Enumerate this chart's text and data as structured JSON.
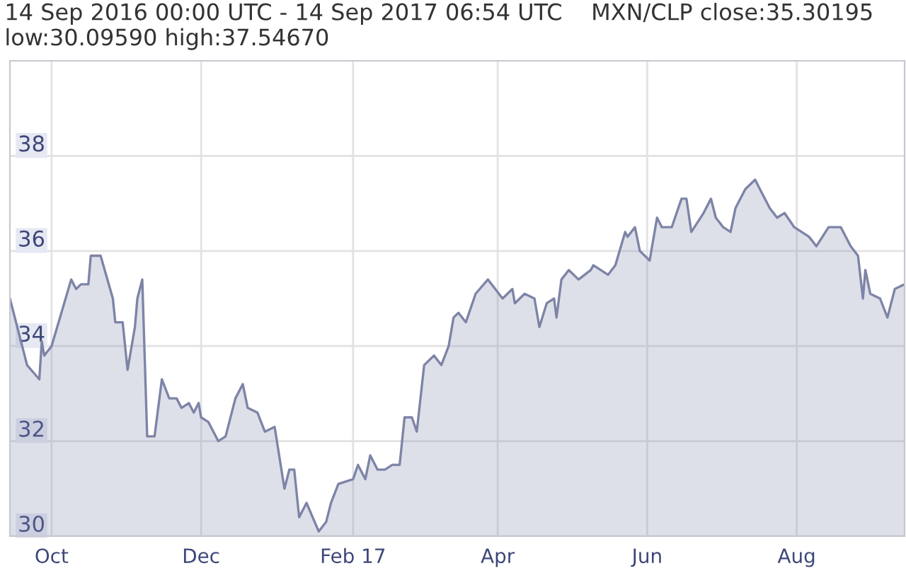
{
  "chart_data": {
    "type": "area",
    "title": "14 Sep 2016 00:00 UTC - 14 Sep 2017 06:54 UTC    MXN/CLP close:35.30195 low:30.09590 high:37.54670",
    "x": [
      "2016-09-14",
      "2016-09-19",
      "2016-09-21",
      "2016-09-26",
      "2016-09-27",
      "2016-09-28",
      "2016-10-01",
      "2016-10-05",
      "2016-10-09",
      "2016-10-11",
      "2016-10-13",
      "2016-10-16",
      "2016-10-17",
      "2016-10-21",
      "2016-10-26",
      "2016-10-27",
      "2016-10-30",
      "2016-11-01",
      "2016-11-04",
      "2016-11-05",
      "2016-11-07",
      "2016-11-09",
      "2016-11-12",
      "2016-11-15",
      "2016-11-18",
      "2016-11-21",
      "2016-11-23",
      "2016-11-26",
      "2016-11-28",
      "2016-11-30",
      "2016-12-01",
      "2016-12-04",
      "2016-12-08",
      "2016-12-11",
      "2016-12-15",
      "2016-12-18",
      "2016-12-20",
      "2016-12-24",
      "2016-12-27",
      "2016-12-31",
      "2017-01-04",
      "2017-01-06",
      "2017-01-08",
      "2017-01-10",
      "2017-01-13",
      "2017-01-18",
      "2017-01-21",
      "2017-01-23",
      "2017-01-26",
      "2017-02-01",
      "2017-02-03",
      "2017-02-06",
      "2017-02-08",
      "2017-02-11",
      "2017-02-14",
      "2017-02-17",
      "2017-02-20",
      "2017-02-22",
      "2017-02-25",
      "2017-02-27",
      "2017-03-02",
      "2017-03-06",
      "2017-03-09",
      "2017-03-12",
      "2017-03-14",
      "2017-03-16",
      "2017-03-19",
      "2017-03-23",
      "2017-03-28",
      "2017-03-31",
      "2017-04-03",
      "2017-04-07",
      "2017-04-08",
      "2017-04-12",
      "2017-04-16",
      "2017-04-18",
      "2017-04-21",
      "2017-04-24",
      "2017-04-25",
      "2017-04-27",
      "2017-04-30",
      "2017-05-04",
      "2017-05-09",
      "2017-05-10",
      "2017-05-16",
      "2017-05-19",
      "2017-05-23",
      "2017-05-24",
      "2017-05-27",
      "2017-05-29",
      "2017-06-02",
      "2017-06-05",
      "2017-06-07",
      "2017-06-11",
      "2017-06-15",
      "2017-06-17",
      "2017-06-19",
      "2017-06-24",
      "2017-06-27",
      "2017-06-29",
      "2017-07-02",
      "2017-07-05",
      "2017-07-07",
      "2017-07-11",
      "2017-07-15",
      "2017-07-17",
      "2017-07-21",
      "2017-07-24",
      "2017-07-27",
      "2017-07-31",
      "2017-08-03",
      "2017-08-06",
      "2017-08-09",
      "2017-08-14",
      "2017-08-19",
      "2017-08-23",
      "2017-08-26",
      "2017-08-28",
      "2017-08-29",
      "2017-08-31",
      "2017-09-04",
      "2017-09-07",
      "2017-09-10",
      "2017-09-14"
    ],
    "series": [
      {
        "color": "#7d84a6",
        "values": [
          35.0,
          34.0,
          33.6,
          33.3,
          34.1,
          33.8,
          34.0,
          34.7,
          35.4,
          35.2,
          35.3,
          35.3,
          35.9,
          35.9,
          35.0,
          34.5,
          34.5,
          33.5,
          34.4,
          35.0,
          35.4,
          32.1,
          32.1,
          33.3,
          32.9,
          32.9,
          32.7,
          32.8,
          32.6,
          32.8,
          32.5,
          32.4,
          32.0,
          32.1,
          32.9,
          33.2,
          32.7,
          32.6,
          32.2,
          32.3,
          31.0,
          31.4,
          31.4,
          30.4,
          30.7,
          30.1,
          30.3,
          30.7,
          31.1,
          31.2,
          31.5,
          31.2,
          31.7,
          31.4,
          31.4,
          31.5,
          31.5,
          32.5,
          32.5,
          32.2,
          33.6,
          33.8,
          33.6,
          34.0,
          34.6,
          34.7,
          34.5,
          35.1,
          35.4,
          35.2,
          35.0,
          35.2,
          34.9,
          35.1,
          35.0,
          34.4,
          34.9,
          35.0,
          34.6,
          35.4,
          35.6,
          35.4,
          35.6,
          35.7,
          35.5,
          35.7,
          36.4,
          36.3,
          36.5,
          36.0,
          35.8,
          36.7,
          36.5,
          36.5,
          37.1,
          37.1,
          36.4,
          36.8,
          37.1,
          36.7,
          36.5,
          36.4,
          36.9,
          37.3,
          37.5,
          37.3,
          36.9,
          36.7,
          36.8,
          36.5,
          36.4,
          36.3,
          36.1,
          36.5,
          36.5,
          36.1,
          35.9,
          35.0,
          35.6,
          35.1,
          35.0,
          34.6,
          35.2,
          35.3
        ]
      }
    ],
    "xlim": [
      "2016-09-14",
      "2017-09-14"
    ],
    "xticks": [
      {
        "value": "2016-10-01",
        "label": "Oct"
      },
      {
        "value": "2016-12-01",
        "label": "Dec"
      },
      {
        "value": "2017-02-01",
        "label": "Feb 17"
      },
      {
        "value": "2017-04-01",
        "label": "Apr"
      },
      {
        "value": "2017-06-01",
        "label": "Jun"
      },
      {
        "value": "2017-08-01",
        "label": "Aug"
      }
    ],
    "ylim": [
      30,
      40
    ],
    "yticks": [
      30,
      32,
      34,
      36,
      38
    ],
    "grid": true
  }
}
